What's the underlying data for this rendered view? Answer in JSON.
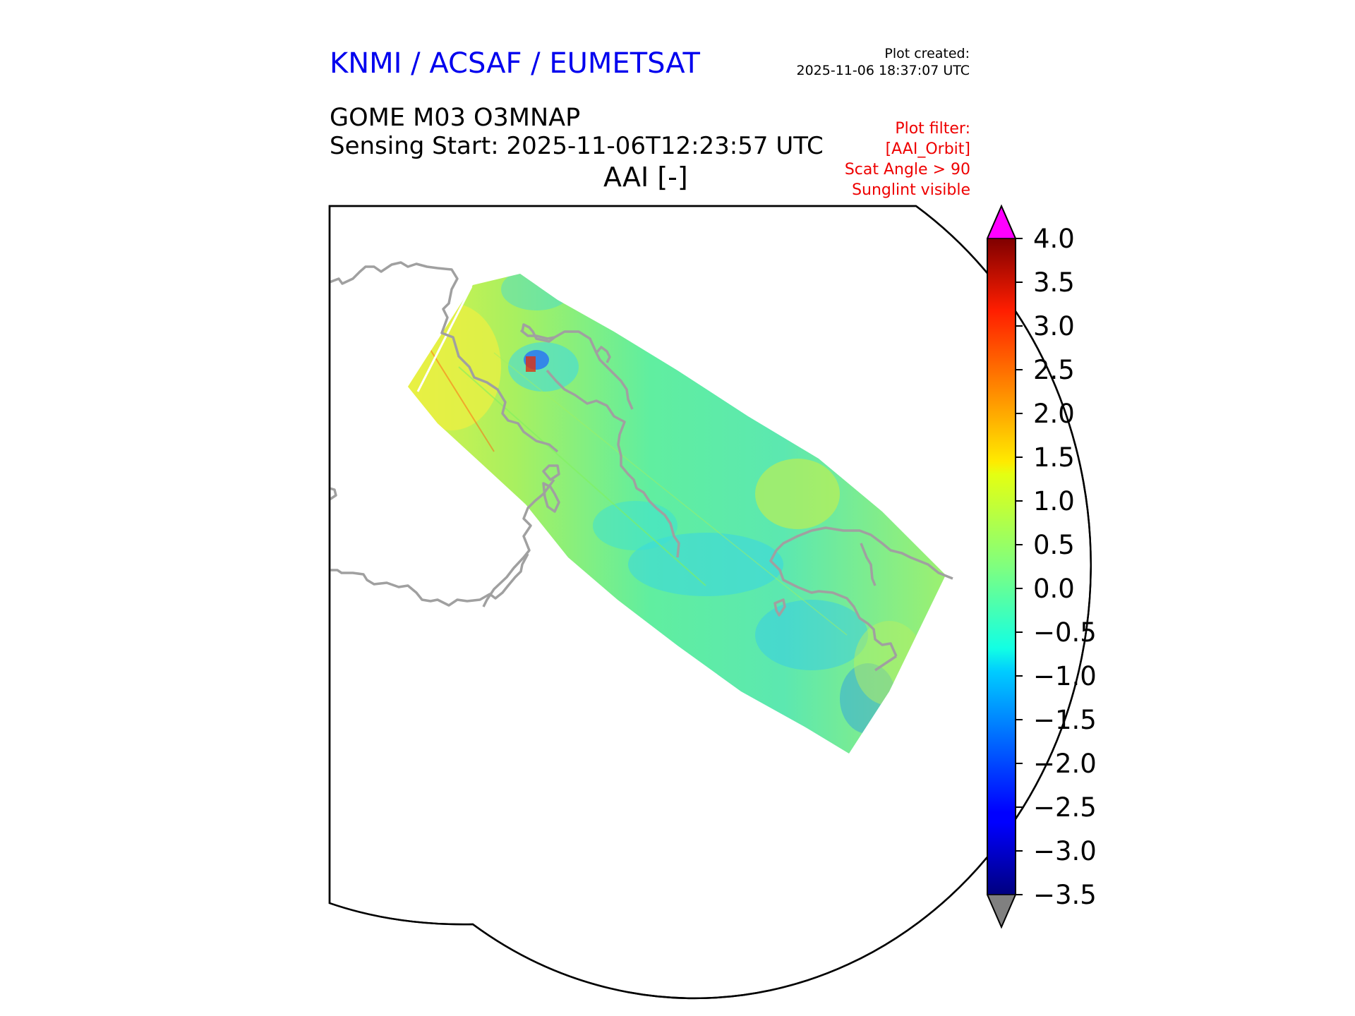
{
  "header": {
    "organization": "KNMI / ACSAF / EUMETSAT",
    "organization_color": "#0000ee",
    "created_label": "Plot created:",
    "created_time": "2025-11-06 18:37:07 UTC",
    "product": "GOME M03 O3MNAP",
    "sensing_start": "Sensing Start: 2025-11-06T12:23:57 UTC",
    "variable": "AAI [-]"
  },
  "filter": {
    "color": "#ee0000",
    "lines": [
      "Plot filter:",
      "[AAI_Orbit]",
      "Scat Angle > 90",
      "Sunglint visible"
    ]
  },
  "colorbar": {
    "min": -3.5,
    "max": 4.0,
    "ticks": [
      "4.0",
      "3.5",
      "3.0",
      "2.5",
      "2.0",
      "1.5",
      "1.0",
      "0.5",
      "0.0",
      "−0.5",
      "−1.0",
      "−1.5",
      "−2.0",
      "−2.5",
      "−3.0",
      "−3.5"
    ],
    "colormap": "jet",
    "over_color": "#ff00ff",
    "under_color": "#808080"
  },
  "map": {
    "coastline_color": "#a0a0a0",
    "projection_outline": "polar stereographic disc"
  }
}
